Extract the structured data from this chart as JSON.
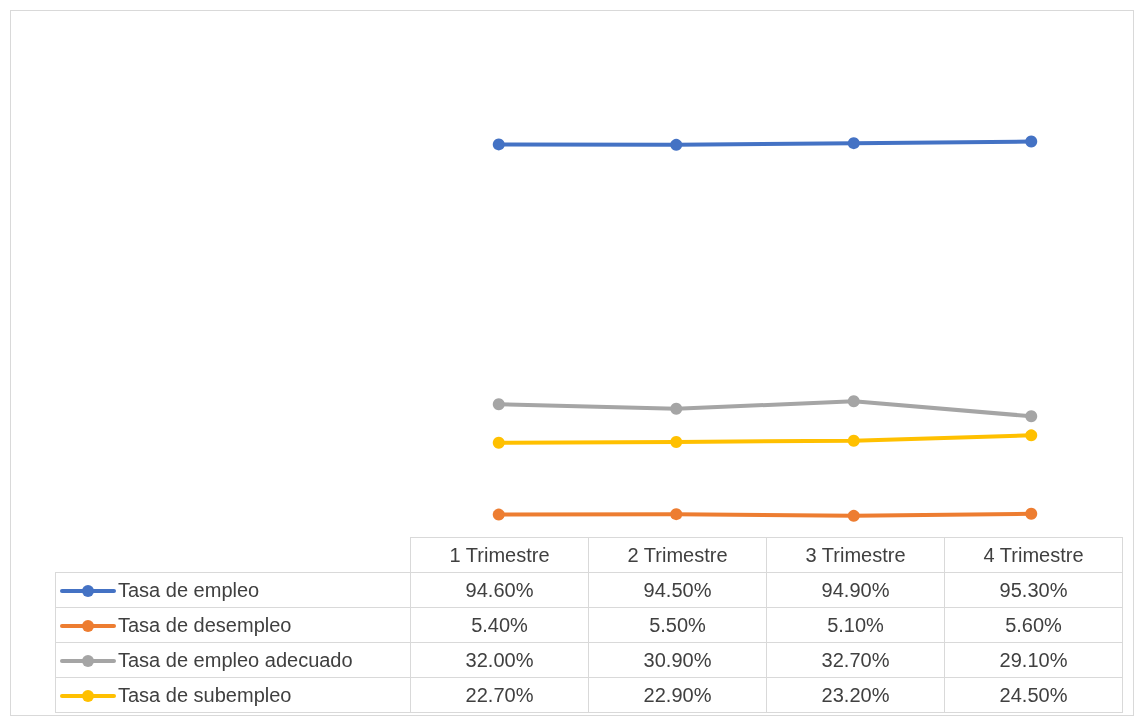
{
  "chart_data": {
    "type": "line",
    "categories": [
      "1 Trimestre",
      "2 Trimestre",
      "3 Trimestre",
      "4 Trimestre"
    ],
    "series": [
      {
        "name": "Tasa de empleo",
        "color": "#4472c4",
        "values": [
          94.6,
          94.5,
          94.9,
          95.3
        ],
        "value_labels": [
          "94.60%",
          "94.50%",
          "94.90%",
          "95.30%"
        ]
      },
      {
        "name": "Tasa de desempleo",
        "color": "#ed7d31",
        "values": [
          5.4,
          5.5,
          5.1,
          5.6
        ],
        "value_labels": [
          "5.40%",
          "5.50%",
          "5.10%",
          "5.60%"
        ]
      },
      {
        "name": "Tasa de empleo adecuado",
        "color": "#a5a5a5",
        "values": [
          32.0,
          30.9,
          32.7,
          29.1
        ],
        "value_labels": [
          "32.00%",
          "30.90%",
          "32.70%",
          "29.10%"
        ]
      },
      {
        "name": "Tasa de subempleo",
        "color": "#ffc000",
        "values": [
          22.7,
          22.9,
          23.2,
          24.5
        ],
        "value_labels": [
          "22.70%",
          "22.90%",
          "23.20%",
          "24.50%"
        ]
      }
    ],
    "marker": "circle",
    "line_style": "solid",
    "legend": "bottom",
    "grid": false
  }
}
